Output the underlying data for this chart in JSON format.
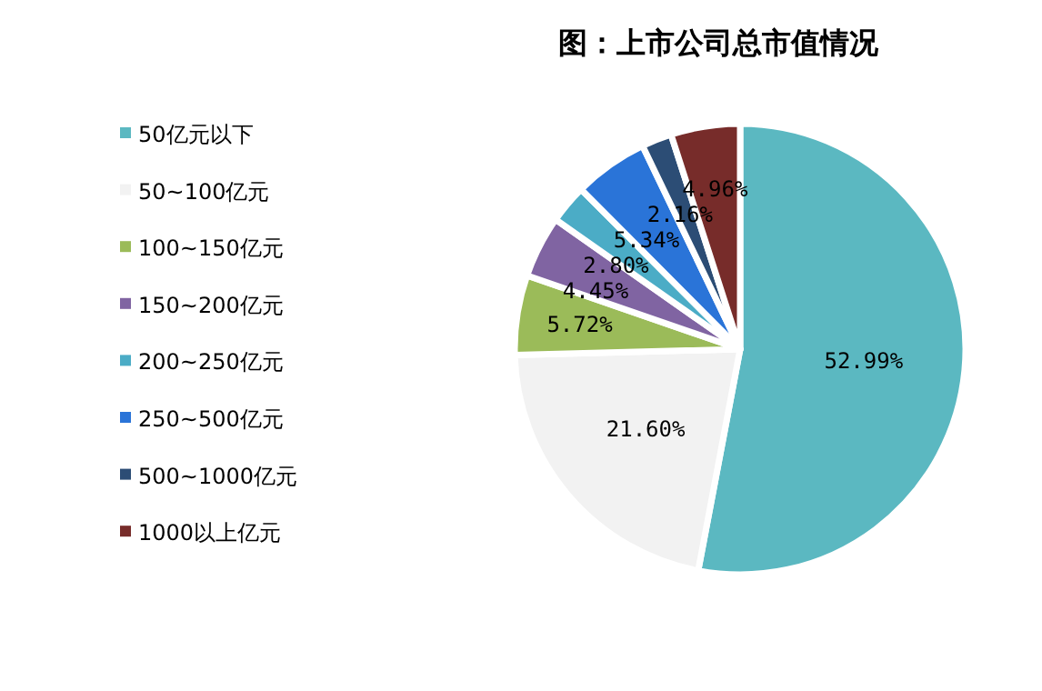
{
  "chart_data": {
    "type": "pie",
    "title": "图：上市公司总市值情况",
    "categories": [
      "50亿元以下",
      "50~100亿元",
      "100~150亿元",
      "150~200亿元",
      "200~250亿元",
      "250~500亿元",
      "500~1000亿元",
      "1000以上亿元"
    ],
    "values": [
      52.99,
      21.6,
      5.72,
      4.45,
      2.8,
      5.34,
      2.16,
      4.96
    ],
    "colors": [
      "#5bb8c1",
      "#f2f2f2",
      "#9bbb59",
      "#8064a2",
      "#4bacc6",
      "#2a74d8",
      "#2c4d75",
      "#772c2a"
    ],
    "value_labels": [
      "52.99%",
      "21.60%",
      "5.72%",
      "4.45%",
      "2.80%",
      "5.34%",
      "2.16%",
      "4.96%"
    ],
    "legend": "left"
  }
}
